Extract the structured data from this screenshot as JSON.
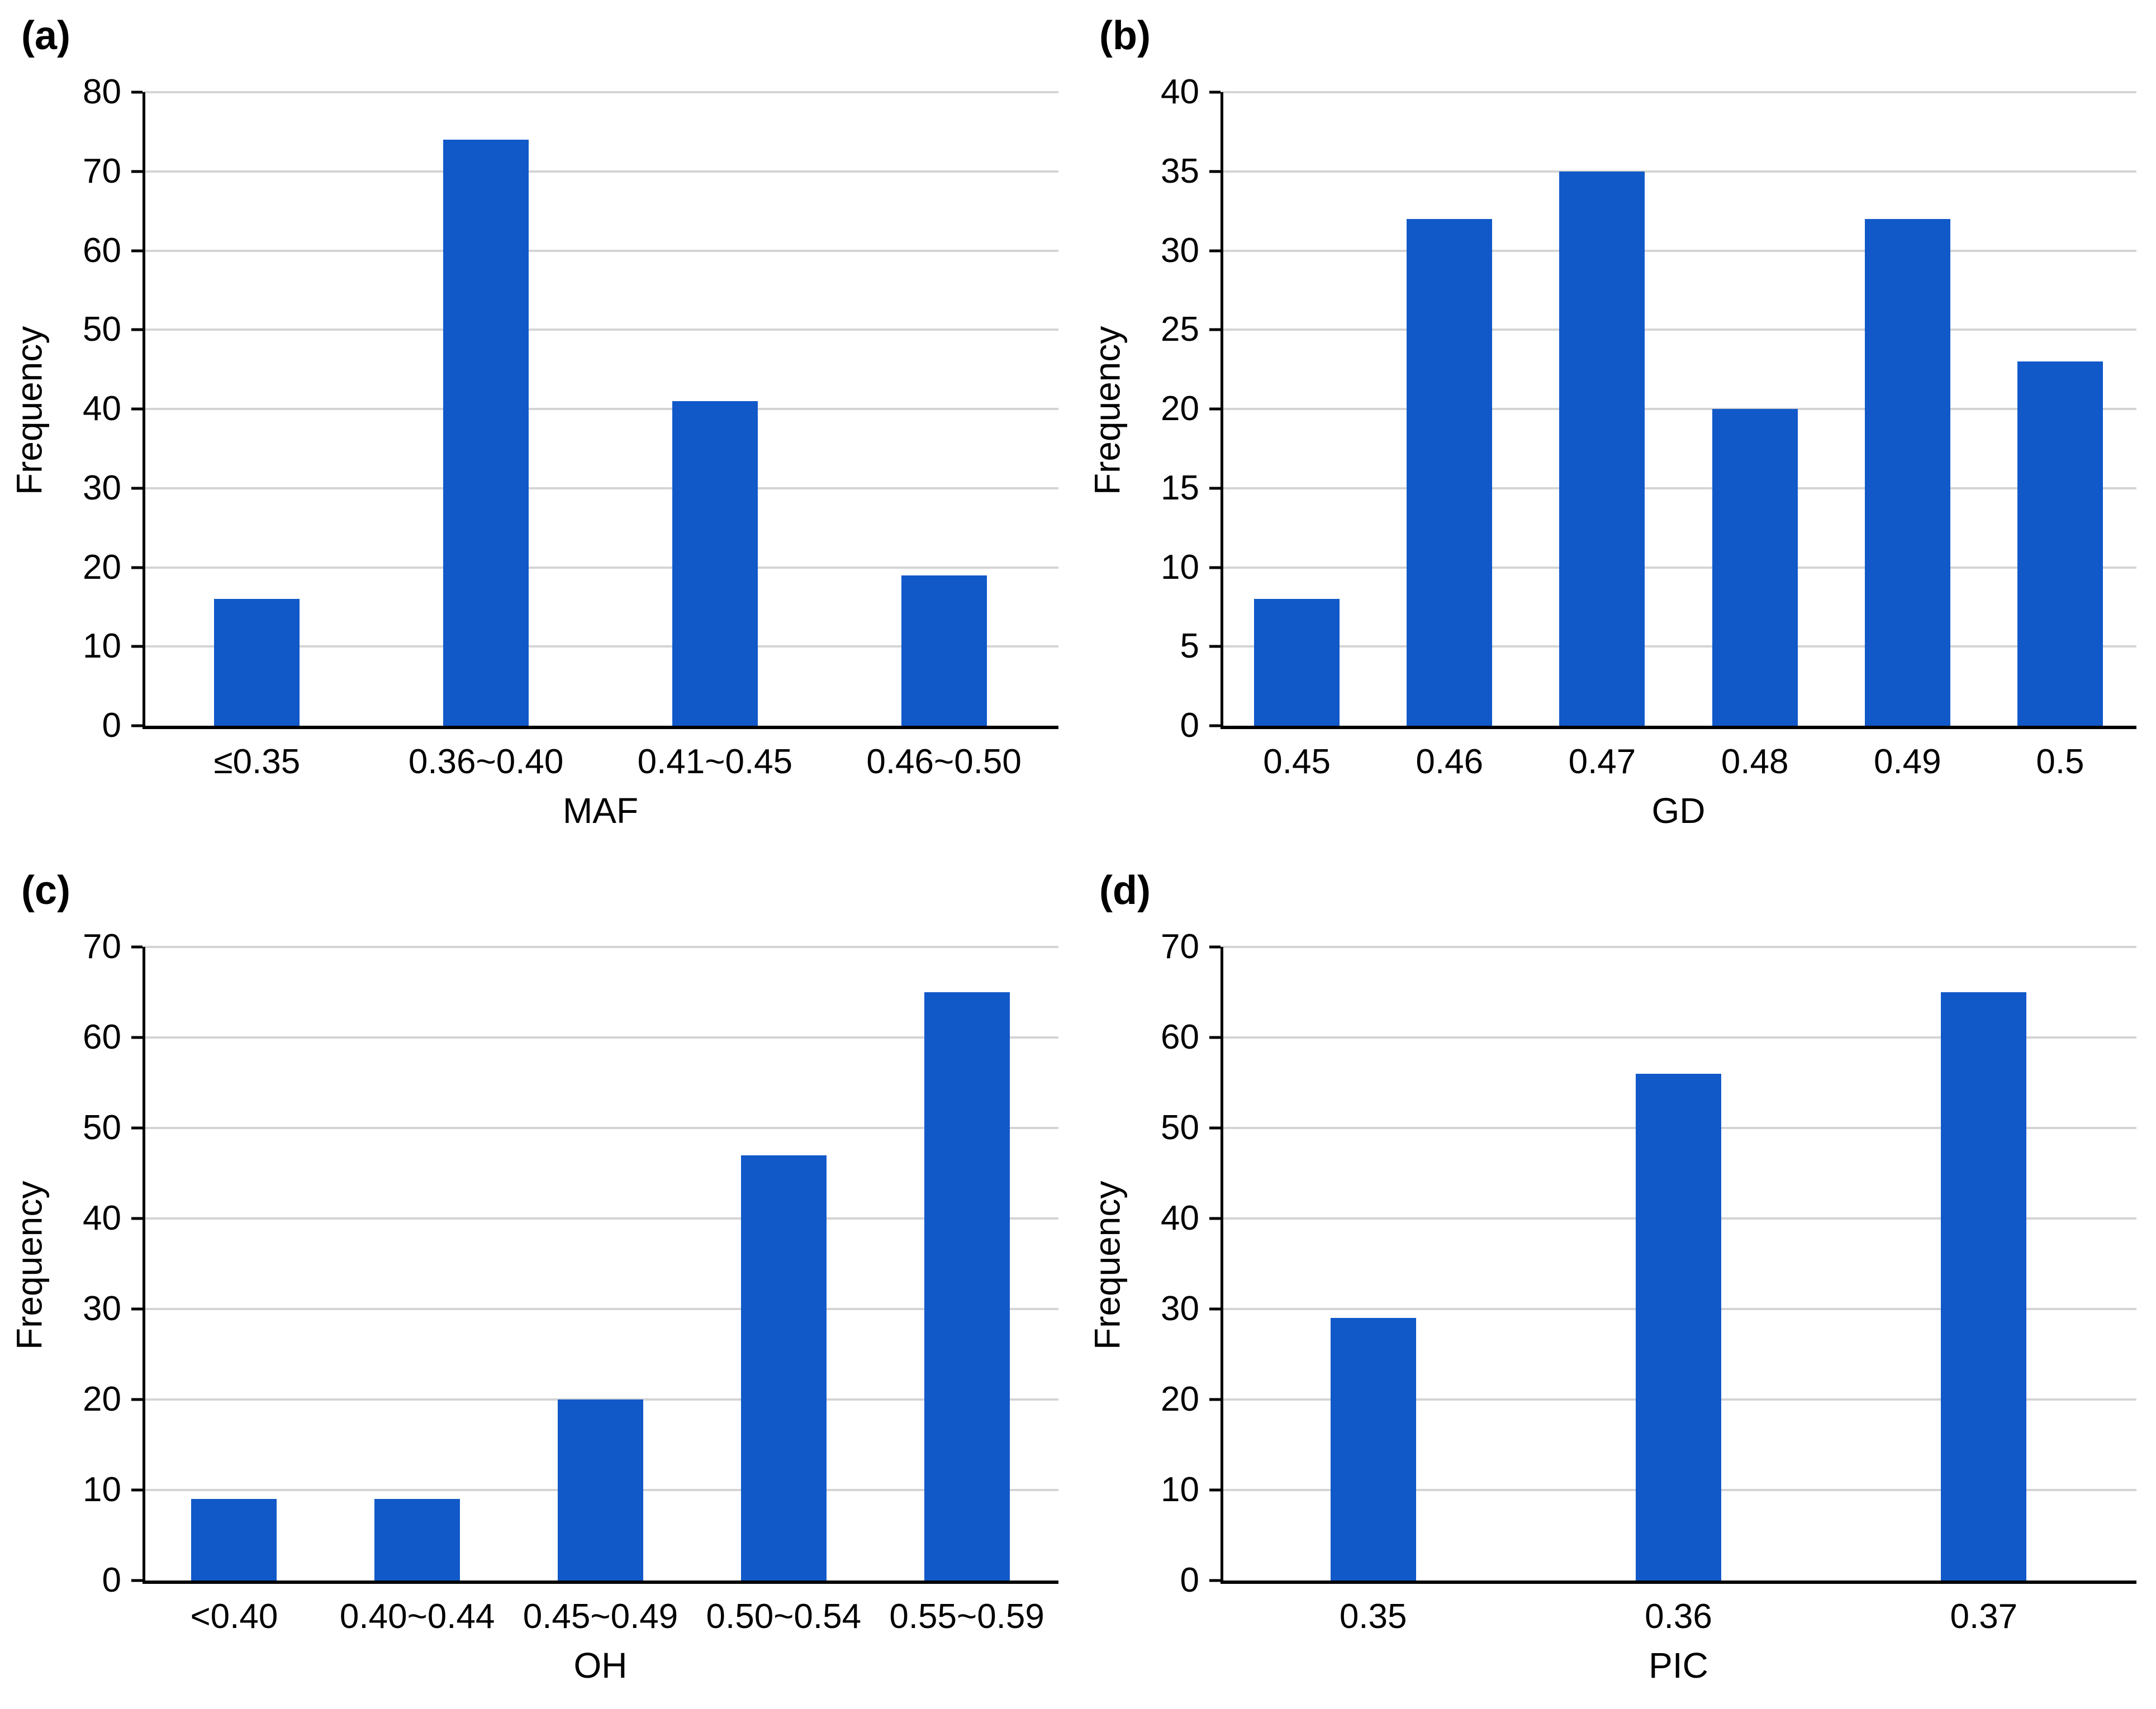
{
  "figure": {
    "background": "#ffffff",
    "description": "Four-panel bar chart figure of marker statistics frequencies"
  },
  "colors": {
    "bar": "#1159c9",
    "gridline": "#d4d4d4",
    "axis": "#000000",
    "text": "#000000"
  },
  "chart_data": [
    {
      "type": "bar",
      "panel_label": "(a)",
      "title": "",
      "categories": [
        "≤0.35",
        "0.36~0.40",
        "0.41~0.45",
        "0.46~0.50"
      ],
      "values": [
        16,
        74,
        41,
        19
      ],
      "xlabel": "MAF",
      "ylabel": "Frequency",
      "ylim": [
        0,
        80
      ],
      "ytick_step": 10,
      "yticks": [
        0,
        10,
        20,
        30,
        40,
        50,
        60,
        70,
        80
      ],
      "grid": "horizontal",
      "legend": "none"
    },
    {
      "type": "bar",
      "panel_label": "(b)",
      "title": "",
      "categories": [
        "0.45",
        "0.46",
        "0.47",
        "0.48",
        "0.49",
        "0.5"
      ],
      "values": [
        8,
        32,
        35,
        20,
        32,
        23
      ],
      "xlabel": "GD",
      "ylabel": "Frequency",
      "ylim": [
        0,
        40
      ],
      "ytick_step": 5,
      "yticks": [
        0,
        5,
        10,
        15,
        20,
        25,
        30,
        35,
        40
      ],
      "grid": "horizontal",
      "legend": "none"
    },
    {
      "type": "bar",
      "panel_label": "(c)",
      "title": "",
      "categories": [
        "<0.40",
        "0.40~0.44",
        "0.45~0.49",
        "0.50~0.54",
        "0.55~0.59"
      ],
      "values": [
        9,
        9,
        20,
        47,
        65
      ],
      "xlabel": "OH",
      "ylabel": "Frequency",
      "ylim": [
        0,
        70
      ],
      "ytick_step": 10,
      "yticks": [
        0,
        10,
        20,
        30,
        40,
        50,
        60,
        70
      ],
      "grid": "horizontal",
      "legend": "none"
    },
    {
      "type": "bar",
      "panel_label": "(d)",
      "title": "",
      "categories": [
        "0.35",
        "0.36",
        "0.37"
      ],
      "values": [
        29,
        56,
        65
      ],
      "xlabel": "PIC",
      "ylabel": "Frequency",
      "ylim": [
        0,
        70
      ],
      "ytick_step": 10,
      "yticks": [
        0,
        10,
        20,
        30,
        40,
        50,
        60,
        70
      ],
      "grid": "horizontal",
      "legend": "none"
    }
  ]
}
